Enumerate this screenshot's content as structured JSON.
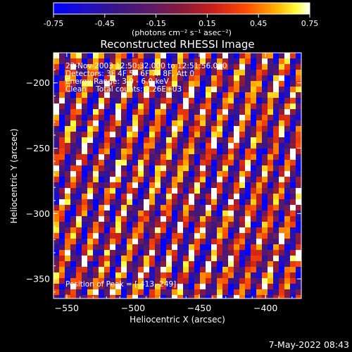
{
  "colorbar": {
    "ticks": [
      "-0.75",
      "-0.45",
      "-0.15",
      "0.15",
      "0.45",
      "0.75"
    ],
    "range": [
      -0.75,
      0.75
    ],
    "unit_label": "(photons cm⁻² s⁻¹ asec⁻²)"
  },
  "chart_data": {
    "type": "heatmap",
    "title": "Reconstructed RHESSI Image",
    "xlabel": "Heliocentric X (arcsec)",
    "ylabel": "Heliocentric Y (arcsec)",
    "xlim": [
      -560,
      -373
    ],
    "ylim": [
      -365,
      -177
    ],
    "x_ticks": [
      -550,
      -500,
      -450,
      -400
    ],
    "y_ticks": [
      -350,
      -300,
      -250,
      -200
    ],
    "x_tick_labels": [
      "−550",
      "−500",
      "−450",
      "−400"
    ],
    "y_tick_labels": [
      "−350",
      "−300",
      "−250",
      "−200"
    ],
    "annotations": [
      "23-Nov-2003 12:50:32.000 to 12:51:56.000",
      "Detectors: 3F 4F 5F 6F 7F 8F, Att 0",
      "Energy Range: 3.0 - 6.0 keV",
      "Clean    Total counts: 2.26E+03"
    ],
    "peak_label": "Position of Peak = [-413,-249]",
    "peak": [
      -413,
      -249
    ],
    "colormap": "rhessi-heat",
    "pattern": "diagonal fringes, upper-right to lower-left"
  },
  "timestamp": "7-May-2022 08:43"
}
